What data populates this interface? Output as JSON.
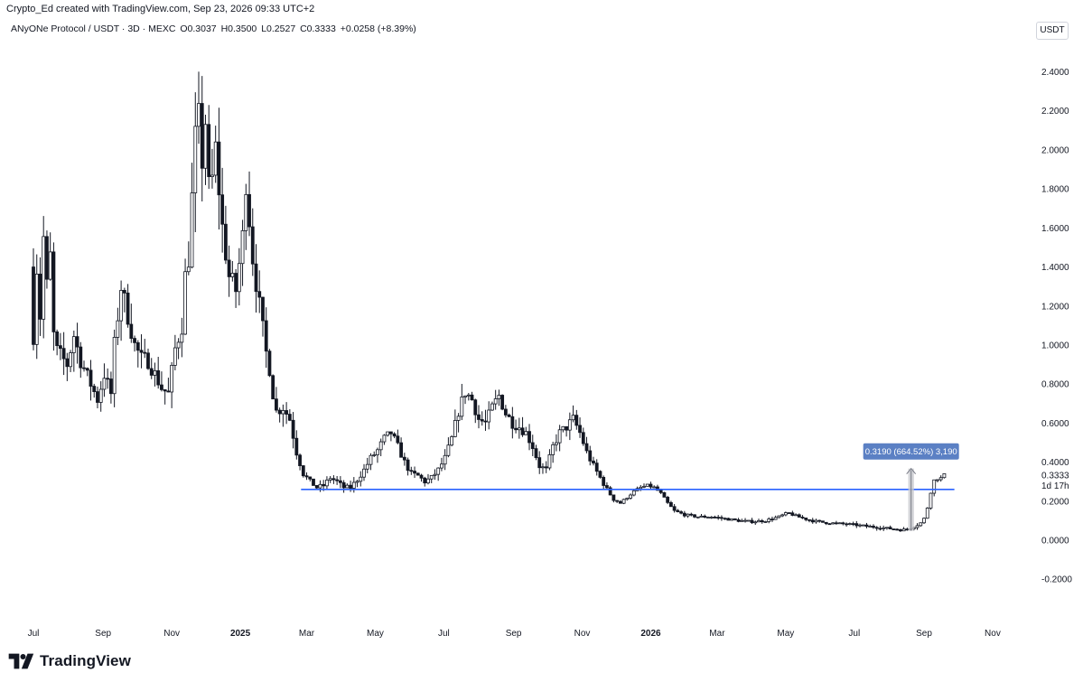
{
  "header": {
    "attribution": "Crypto_Ed created with TradingView.com, Sep 23, 2026 09:33 UTC+2"
  },
  "symbol_info": {
    "symbol": "ANyONe Protocol / USDT · 3D · MEXC",
    "open": "O0.3037",
    "high": "H0.3500",
    "low": "L0.2527",
    "close": "C0.3333",
    "change": "+0.0258 (+8.39%)"
  },
  "currency_label": "USDT",
  "footer": {
    "brand": "TradingView"
  },
  "colors": {
    "candle": "#131722",
    "support_line": "#2962ff",
    "measure_box": "#5b80c4",
    "measure_fill": "#c8c9ce",
    "axis_text": "#131722",
    "background": "#ffffff"
  },
  "chart_data": {
    "type": "candlestick",
    "title": "ANyONe Protocol / USDT · 3D · MEXC",
    "y_ticks": [
      "2.4000",
      "2.2000",
      "2.0000",
      "1.8000",
      "1.6000",
      "1.4000",
      "1.2000",
      "1.0000",
      "0.8000",
      "0.6000",
      "0.4000",
      "0.2000",
      "0.0000",
      "-0.2000"
    ],
    "y_tick_values": [
      2.4,
      2.2,
      2.0,
      1.8,
      1.6,
      1.4,
      1.2,
      1.0,
      0.8,
      0.6,
      0.4,
      0.2,
      0.0,
      -0.2
    ],
    "ylim": [
      -0.25,
      2.5
    ],
    "x_ticks": [
      "Jul",
      "Sep",
      "Nov",
      "2025",
      "Mar",
      "May",
      "Jul",
      "Sep",
      "Nov",
      "2026",
      "Mar",
      "May",
      "Jul",
      "Sep",
      "Nov"
    ],
    "x_tick_dates": [
      "2024-07-01",
      "2024-09-01",
      "2024-11-01",
      "2025-01-01",
      "2025-03-01",
      "2025-05-01",
      "2025-07-01",
      "2025-09-01",
      "2025-11-01",
      "2026-01-01",
      "2026-03-01",
      "2026-05-01",
      "2026-07-01",
      "2026-09-01",
      "2026-11-01"
    ],
    "bold_x_ticks": [
      "2025",
      "2026"
    ],
    "xlim": [
      "2024-06-24",
      "2026-11-25"
    ],
    "last_price": {
      "value": 0.3333,
      "label": "0.3333",
      "countdown": "1d 17h"
    },
    "support_level": {
      "value": 0.26,
      "start": "2025-02-24",
      "end": "2026-09-28"
    },
    "measure": {
      "label": "0.3190 (664.52%) 3,190",
      "start": "2026-08-18",
      "end": "2026-08-23",
      "from": 0.048,
      "to": 0.367
    },
    "candle_anchors": [
      [
        "2024-07-01",
        1.4
      ],
      [
        "2024-07-04",
        1.05
      ],
      [
        "2024-07-07",
        1.4
      ],
      [
        "2024-07-10",
        1.15
      ],
      [
        "2024-07-13",
        1.55
      ],
      [
        "2024-07-16",
        1.3
      ],
      [
        "2024-07-19",
        1.45
      ],
      [
        "2024-07-22",
        1.05
      ],
      [
        "2024-07-25",
        0.97
      ],
      [
        "2024-08-03",
        0.9
      ],
      [
        "2024-08-09",
        1.05
      ],
      [
        "2024-08-15",
        0.92
      ],
      [
        "2024-08-24",
        0.8
      ],
      [
        "2024-08-30",
        0.72
      ],
      [
        "2024-09-05",
        0.85
      ],
      [
        "2024-09-11",
        0.75
      ],
      [
        "2024-09-14",
        1.0
      ],
      [
        "2024-09-20",
        1.3
      ],
      [
        "2024-09-26",
        1.15
      ],
      [
        "2024-10-02",
        1.0
      ],
      [
        "2024-10-08",
        0.93
      ],
      [
        "2024-10-14",
        0.92
      ],
      [
        "2024-10-20",
        0.85
      ],
      [
        "2024-10-26",
        0.78
      ],
      [
        "2024-11-01",
        0.75
      ],
      [
        "2024-11-07",
        0.98
      ],
      [
        "2024-11-13",
        1.1
      ],
      [
        "2024-11-16",
        1.35
      ],
      [
        "2024-11-19",
        1.45
      ],
      [
        "2024-11-22",
        1.75
      ],
      [
        "2024-11-25",
        2.05
      ],
      [
        "2024-11-28",
        2.15
      ],
      [
        "2024-12-01",
        1.95
      ],
      [
        "2024-12-04",
        2.15
      ],
      [
        "2024-12-07",
        1.8
      ],
      [
        "2024-12-10",
        1.85
      ],
      [
        "2024-12-13",
        2.0
      ],
      [
        "2024-12-19",
        1.6
      ],
      [
        "2024-12-25",
        1.35
      ],
      [
        "2024-12-31",
        1.28
      ],
      [
        "2025-01-06",
        1.55
      ],
      [
        "2025-01-09",
        1.85
      ],
      [
        "2025-01-15",
        1.45
      ],
      [
        "2025-01-21",
        1.2
      ],
      [
        "2025-01-24",
        1.08
      ],
      [
        "2025-01-27",
        0.96
      ],
      [
        "2025-01-30",
        0.88
      ],
      [
        "2025-02-02",
        0.75
      ],
      [
        "2025-02-05",
        0.66
      ],
      [
        "2025-02-11",
        0.68
      ],
      [
        "2025-02-17",
        0.62
      ],
      [
        "2025-02-23",
        0.45
      ],
      [
        "2025-03-01",
        0.34
      ],
      [
        "2025-03-07",
        0.3
      ],
      [
        "2025-03-13",
        0.27
      ],
      [
        "2025-03-19",
        0.28
      ],
      [
        "2025-03-25",
        0.32
      ],
      [
        "2025-03-31",
        0.3
      ],
      [
        "2025-04-06",
        0.27
      ],
      [
        "2025-04-12",
        0.27
      ],
      [
        "2025-04-18",
        0.31
      ],
      [
        "2025-04-24",
        0.36
      ],
      [
        "2025-04-30",
        0.42
      ],
      [
        "2025-05-06",
        0.46
      ],
      [
        "2025-05-12",
        0.52
      ],
      [
        "2025-05-18",
        0.55
      ],
      [
        "2025-05-24",
        0.48
      ],
      [
        "2025-05-30",
        0.4
      ],
      [
        "2025-06-05",
        0.34
      ],
      [
        "2025-06-11",
        0.33
      ],
      [
        "2025-06-17",
        0.3
      ],
      [
        "2025-06-23",
        0.32
      ],
      [
        "2025-06-29",
        0.36
      ],
      [
        "2025-07-05",
        0.42
      ],
      [
        "2025-07-11",
        0.52
      ],
      [
        "2025-07-17",
        0.66
      ],
      [
        "2025-07-23",
        0.76
      ],
      [
        "2025-07-29",
        0.72
      ],
      [
        "2025-08-04",
        0.62
      ],
      [
        "2025-08-10",
        0.6
      ],
      [
        "2025-08-16",
        0.68
      ],
      [
        "2025-08-22",
        0.74
      ],
      [
        "2025-08-28",
        0.65
      ],
      [
        "2025-09-03",
        0.6
      ],
      [
        "2025-09-09",
        0.58
      ],
      [
        "2025-09-15",
        0.55
      ],
      [
        "2025-09-21",
        0.48
      ],
      [
        "2025-09-27",
        0.38
      ],
      [
        "2025-10-03",
        0.36
      ],
      [
        "2025-10-09",
        0.48
      ],
      [
        "2025-10-15",
        0.55
      ],
      [
        "2025-10-21",
        0.58
      ],
      [
        "2025-10-27",
        0.62
      ],
      [
        "2025-11-02",
        0.55
      ],
      [
        "2025-11-08",
        0.45
      ],
      [
        "2025-11-14",
        0.38
      ],
      [
        "2025-11-20",
        0.32
      ],
      [
        "2025-11-26",
        0.26
      ],
      [
        "2025-12-02",
        0.21
      ],
      [
        "2025-12-08",
        0.19
      ],
      [
        "2025-12-14",
        0.22
      ],
      [
        "2025-12-20",
        0.25
      ],
      [
        "2025-12-26",
        0.27
      ],
      [
        "2026-01-01",
        0.28
      ],
      [
        "2026-01-07",
        0.27
      ],
      [
        "2026-01-13",
        0.24
      ],
      [
        "2026-01-19",
        0.19
      ],
      [
        "2026-01-25",
        0.15
      ],
      [
        "2026-02-03",
        0.13
      ],
      [
        "2026-02-15",
        0.12
      ],
      [
        "2026-02-27",
        0.12
      ],
      [
        "2026-03-11",
        0.11
      ],
      [
        "2026-03-23",
        0.1
      ],
      [
        "2026-04-04",
        0.095
      ],
      [
        "2026-04-16",
        0.1
      ],
      [
        "2026-04-28",
        0.12
      ],
      [
        "2026-05-06",
        0.14
      ],
      [
        "2026-05-15",
        0.12
      ],
      [
        "2026-05-27",
        0.1
      ],
      [
        "2026-06-08",
        0.09
      ],
      [
        "2026-06-20",
        0.085
      ],
      [
        "2026-07-02",
        0.08
      ],
      [
        "2026-07-14",
        0.072
      ],
      [
        "2026-07-26",
        0.065
      ],
      [
        "2026-08-07",
        0.058
      ],
      [
        "2026-08-16",
        0.052
      ],
      [
        "2026-08-22",
        0.06
      ],
      [
        "2026-08-28",
        0.075
      ],
      [
        "2026-09-03",
        0.095
      ],
      [
        "2026-09-06",
        0.14
      ],
      [
        "2026-09-09",
        0.22
      ],
      [
        "2026-09-12",
        0.3
      ],
      [
        "2026-09-15",
        0.32
      ],
      [
        "2026-09-18",
        0.31
      ],
      [
        "2026-09-21",
        0.3333
      ]
    ]
  }
}
